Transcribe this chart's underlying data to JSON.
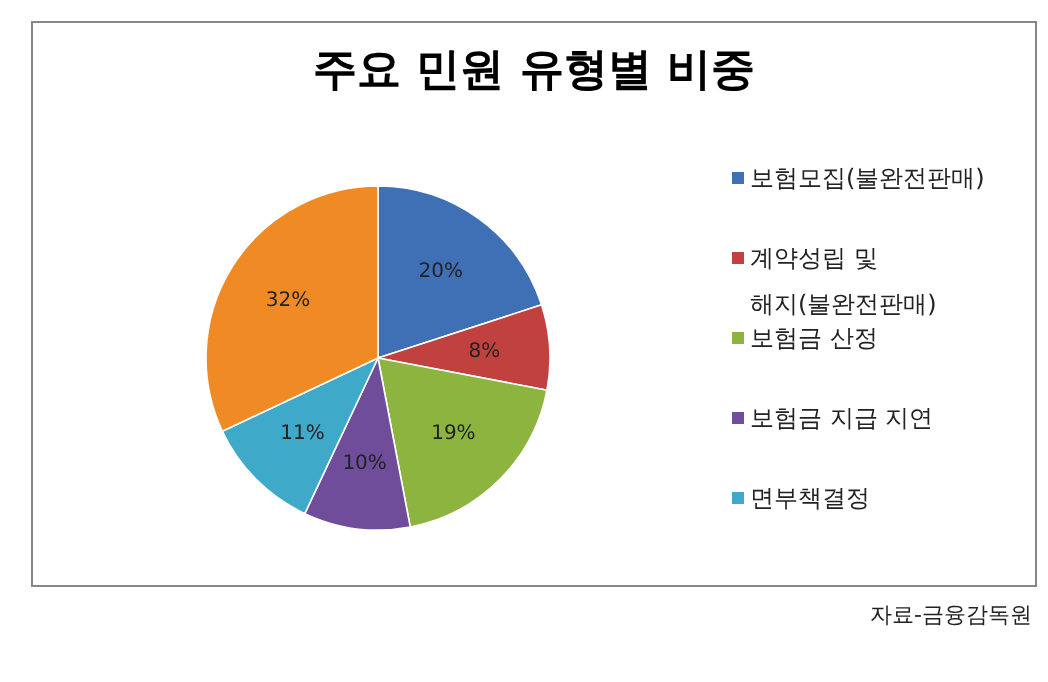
{
  "chart_data": {
    "type": "pie",
    "title": "주요 민원 유형별 비중",
    "categories": [
      "보험모집(불완전판매)",
      "계약성립 및 해지(불완전판매)",
      "보험금 산정",
      "보험금 지급 지연",
      "면부책결정",
      null
    ],
    "values": [
      20,
      8,
      19,
      10,
      11,
      32
    ],
    "value_labels": [
      "20%",
      "8%",
      "19%",
      "10%",
      "11%",
      "32%"
    ],
    "colors": [
      "#3f6fb5",
      "#c0413d",
      "#8db43e",
      "#6f4d9a",
      "#3fa9c9",
      "#f08a24"
    ],
    "legend": "right",
    "annotations": [
      "자료-금융감독원"
    ]
  }
}
